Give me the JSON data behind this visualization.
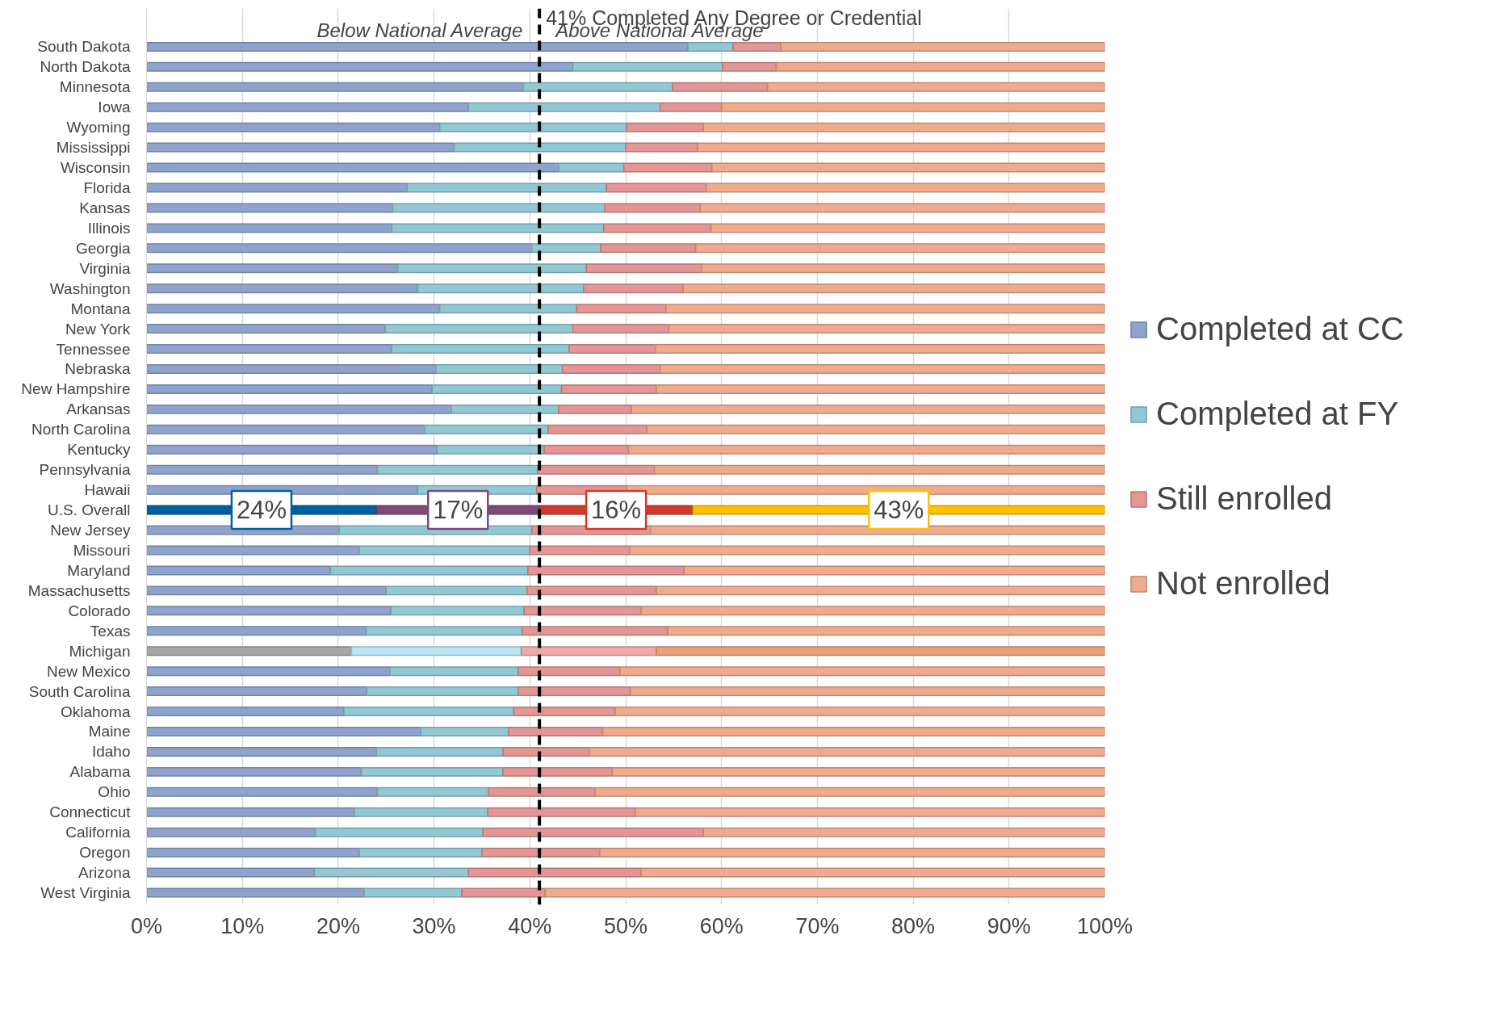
{
  "chart_data": {
    "type": "bar",
    "orientation": "horizontal",
    "stacked": true,
    "categories": [
      "South Dakota",
      "North Dakota",
      "Minnesota",
      "Iowa",
      "Wyoming",
      "Mississippi",
      "Wisconsin",
      "Florida",
      "Kansas",
      "Illinois",
      "Georgia",
      "Virginia",
      "Washington",
      "Montana",
      "New York",
      "Tennessee",
      "Nebraska",
      "New Hampshire",
      "Arkansas",
      "North Carolina",
      "Kentucky",
      "Pennsylvania",
      "Hawaii",
      "U.S. Overall",
      "New Jersey",
      "Missouri",
      "Maryland",
      "Massachusetts",
      "Colorado",
      "Texas",
      "Michigan",
      "New Mexico",
      "South Carolina",
      "Oklahoma",
      "Maine",
      "Idaho",
      "Alabama",
      "Ohio",
      "Connecticut",
      "California",
      "Oregon",
      "Arizona",
      "West Virginia"
    ],
    "series": [
      {
        "name": "Completed at CC",
        "color": "#8fa4cc",
        "colors": [
          null,
          null,
          null,
          null,
          null,
          null,
          null,
          null,
          null,
          null,
          null,
          null,
          null,
          null,
          null,
          null,
          null,
          null,
          null,
          null,
          null,
          null,
          null,
          "#00609f",
          null,
          null,
          null,
          null,
          null,
          null,
          "#a6a6a6",
          null,
          null,
          null,
          null,
          null,
          null,
          null,
          null,
          null,
          null,
          null,
          null
        ],
        "values": [
          56.5,
          44.5,
          39.3,
          33.6,
          30.6,
          32.1,
          43.0,
          27.2,
          25.7,
          25.6,
          40.2,
          26.2,
          28.3,
          30.6,
          24.9,
          25.6,
          30.2,
          29.8,
          31.8,
          29.0,
          30.3,
          24.1,
          28.3,
          24,
          20.1,
          22.2,
          19.2,
          25.0,
          25.5,
          22.9,
          21.4,
          25.4,
          23.0,
          20.6,
          28.6,
          24.0,
          22.4,
          24.1,
          21.7,
          17.6,
          22.2,
          17.5,
          22.7
        ],
        "value_labels": [
          null,
          null,
          null,
          null,
          null,
          null,
          null,
          null,
          null,
          null,
          null,
          null,
          null,
          null,
          null,
          null,
          null,
          null,
          null,
          null,
          null,
          null,
          null,
          "24%",
          null,
          null,
          null,
          null,
          null,
          null,
          null,
          null,
          null,
          null,
          null,
          null,
          null,
          null,
          null,
          null,
          null,
          null,
          null
        ]
      },
      {
        "name": "Completed at FY",
        "color": "#92c8d3",
        "colors": [
          null,
          null,
          null,
          null,
          null,
          null,
          null,
          null,
          null,
          null,
          null,
          null,
          null,
          null,
          null,
          null,
          null,
          null,
          null,
          null,
          null,
          null,
          null,
          "#7e4a7a",
          null,
          null,
          null,
          null,
          null,
          null,
          "#bde4f5",
          null,
          null,
          null,
          null,
          null,
          null,
          null,
          null,
          null,
          null,
          null,
          null
        ],
        "values": [
          4.7,
          15.6,
          15.6,
          20.0,
          19.5,
          17.9,
          6.8,
          20.8,
          22.1,
          22.1,
          7.2,
          19.7,
          17.3,
          14.3,
          19.6,
          18.5,
          13.2,
          13.5,
          11.2,
          12.9,
          11.2,
          16.7,
          12.4,
          17,
          20.1,
          17.8,
          20.6,
          14.7,
          13.9,
          16.3,
          17.7,
          13.4,
          15.8,
          17.7,
          9.2,
          13.2,
          14.8,
          11.6,
          13.9,
          17.5,
          12.8,
          16.1,
          10.2
        ],
        "value_labels": [
          null,
          null,
          null,
          null,
          null,
          null,
          null,
          null,
          null,
          null,
          null,
          null,
          null,
          null,
          null,
          null,
          null,
          null,
          null,
          null,
          null,
          null,
          null,
          "17%",
          null,
          null,
          null,
          null,
          null,
          null,
          null,
          null,
          null,
          null,
          null,
          null,
          null,
          null,
          null,
          null,
          null,
          null,
          null
        ]
      },
      {
        "name": "Still enrolled",
        "color": "#e39694",
        "colors": [
          null,
          null,
          null,
          null,
          null,
          null,
          null,
          null,
          null,
          null,
          null,
          null,
          null,
          null,
          null,
          null,
          null,
          null,
          null,
          null,
          null,
          null,
          null,
          "#cf3a2a",
          null,
          null,
          null,
          null,
          null,
          null,
          "#eeaaa8",
          null,
          null,
          null,
          null,
          null,
          null,
          null,
          null,
          null,
          null,
          null,
          null
        ],
        "values": [
          5.0,
          5.6,
          9.9,
          6.4,
          8.0,
          7.5,
          9.2,
          10.4,
          10.0,
          11.2,
          9.9,
          12.0,
          10.4,
          9.3,
          10.0,
          9.0,
          10.2,
          9.9,
          7.6,
          10.3,
          8.8,
          12.2,
          9.4,
          16,
          12.4,
          10.4,
          16.3,
          13.5,
          12.2,
          15.2,
          14.1,
          10.6,
          11.7,
          10.6,
          9.8,
          9.0,
          11.4,
          11.1,
          15.4,
          23.0,
          12.3,
          18.0,
          8.7
        ],
        "value_labels": [
          null,
          null,
          null,
          null,
          null,
          null,
          null,
          null,
          null,
          null,
          null,
          null,
          null,
          null,
          null,
          null,
          null,
          null,
          null,
          null,
          null,
          null,
          null,
          "16%",
          null,
          null,
          null,
          null,
          null,
          null,
          null,
          null,
          null,
          null,
          null,
          null,
          null,
          null,
          null,
          null,
          null,
          null,
          null
        ]
      },
      {
        "name": "Not enrolled",
        "color": "#efab8e",
        "colors": [
          null,
          null,
          null,
          null,
          null,
          null,
          null,
          null,
          null,
          null,
          null,
          null,
          null,
          null,
          null,
          null,
          null,
          null,
          null,
          null,
          null,
          null,
          null,
          "#ffc000",
          null,
          null,
          null,
          null,
          null,
          null,
          "#e9a27c",
          null,
          null,
          null,
          null,
          null,
          null,
          null,
          null,
          null,
          null,
          null,
          null
        ],
        "values": [
          33.8,
          34.3,
          35.2,
          40.0,
          41.9,
          42.5,
          41.0,
          41.6,
          42.2,
          41.1,
          42.7,
          42.1,
          44.0,
          45.8,
          45.5,
          46.9,
          46.4,
          46.8,
          49.4,
          47.8,
          49.7,
          47.0,
          49.9,
          43,
          47.4,
          49.6,
          43.9,
          46.8,
          48.4,
          45.6,
          46.8,
          50.6,
          49.5,
          51.1,
          52.4,
          53.8,
          51.4,
          53.2,
          49.0,
          41.9,
          52.7,
          48.4,
          58.4
        ],
        "value_labels": [
          null,
          null,
          null,
          null,
          null,
          null,
          null,
          null,
          null,
          null,
          null,
          null,
          null,
          null,
          null,
          null,
          null,
          null,
          null,
          null,
          null,
          null,
          null,
          "43%",
          null,
          null,
          null,
          null,
          null,
          null,
          null,
          null,
          null,
          null,
          null,
          null,
          null,
          null,
          null,
          null,
          null,
          null,
          null
        ]
      }
    ],
    "xlim": [
      0,
      100
    ],
    "xticks": [
      {
        "value": 0,
        "label": "0%"
      },
      {
        "value": 10,
        "label": "10%"
      },
      {
        "value": 20,
        "label": "20%"
      },
      {
        "value": 30,
        "label": "30%"
      },
      {
        "value": 40,
        "label": "40%"
      },
      {
        "value": 50,
        "label": "50%"
      },
      {
        "value": 60,
        "label": "60%"
      },
      {
        "value": 70,
        "label": "70%"
      },
      {
        "value": 80,
        "label": "80%"
      },
      {
        "value": 90,
        "label": "90%"
      },
      {
        "value": 100,
        "label": "100%"
      }
    ],
    "grid": "x",
    "legend": "right",
    "ref_lines": [
      {
        "axis": "x",
        "value": 41,
        "label": "41% Completed Any Degree or Credential",
        "color": "#000000",
        "line_style": "dashed"
      }
    ],
    "annotations": [
      "Below National Average",
      "Above National Average"
    ]
  }
}
